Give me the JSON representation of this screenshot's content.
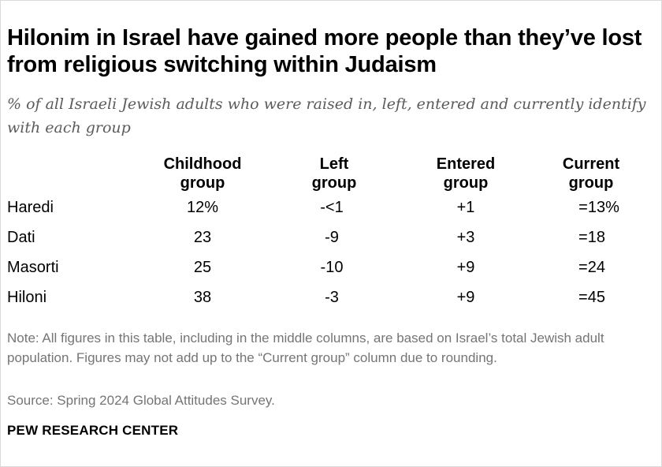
{
  "chart_data": {
    "type": "table",
    "title": "Hilonim in Israel have gained more people than they’ve lost from religious switching within Judaism",
    "subtitle": "% of all Israeli Jewish adults who were raised in, left, entered and currently identify with each group",
    "columns": [
      {
        "line1": "Childhood",
        "line2": "group"
      },
      {
        "line1": "Left",
        "line2": "group"
      },
      {
        "line1": "Entered",
        "line2": "group"
      },
      {
        "line1": "Current",
        "line2": "group"
      }
    ],
    "rows": [
      {
        "label": "Haredi",
        "childhood": "12%",
        "left": "-<1",
        "entered": "+1",
        "current": "=13%"
      },
      {
        "label": "Dati",
        "childhood": "23",
        "left": "-9",
        "entered": "+3",
        "current": "=18"
      },
      {
        "label": "Masorti",
        "childhood": "25",
        "left": "-10",
        "entered": "+9",
        "current": "=24"
      },
      {
        "label": "Hiloni",
        "childhood": "38",
        "left": "-3",
        "entered": "+9",
        "current": "=45"
      }
    ],
    "note": "Note: All figures in this table, including in the middle columns, are based on Israel’s total Jewish adult population. Figures may not add up to the “Current group” column due to rounding.",
    "source": "Source: Spring 2024 Global Attitudes Survey."
  },
  "branding": {
    "name": "PEW RESEARCH CENTER"
  }
}
